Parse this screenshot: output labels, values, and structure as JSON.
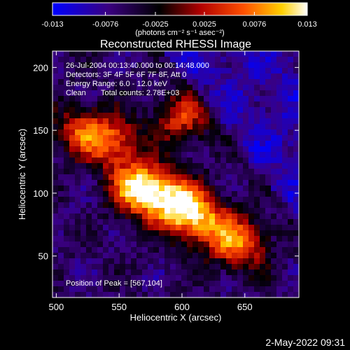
{
  "chart_data": {
    "type": "heatmap",
    "title": "Reconstructed RHESSI Image",
    "xlabel": "Heliocentric X (arcsec)",
    "ylabel": "Heliocentric Y (arcsec)",
    "xlim": [
      497,
      693
    ],
    "ylim": [
      17,
      213
    ],
    "x_ticks": [
      500,
      550,
      600,
      650
    ],
    "y_ticks": [
      50,
      100,
      150,
      200
    ],
    "colorbar": {
      "range": [
        -0.013,
        0.013
      ],
      "tick_values": [
        -0.013,
        -0.0076,
        -0.0025,
        0.0025,
        0.0076,
        0.013
      ],
      "tick_labels": [
        "-0.013",
        "-0.0076",
        "-0.0025",
        "0.0025",
        "0.0076",
        "0.013"
      ],
      "unit_label": "(photons cm⁻² s⁻¹ asec⁻²)"
    },
    "annotations": {
      "time_range": "26-Jul-2004 00:13:40.000 to 00:14:48.000",
      "detectors": "Detectors: 3F 4F 5F 6F 7F 8F, Att 0",
      "energy": "Energy Range: 6.0 - 12.0 keV",
      "algorithm": "Clean",
      "total_counts": "Total counts: 2.78E+03",
      "peak": "Position of Peak = [567,104]"
    },
    "peak_position": [
      567,
      104
    ],
    "source_ridge": [
      {
        "x": 520,
        "y": 150,
        "intensity": 0.0035
      },
      {
        "x": 545,
        "y": 140,
        "intensity": 0.0055
      },
      {
        "x": 567,
        "y": 104,
        "intensity": 0.013
      },
      {
        "x": 595,
        "y": 92,
        "intensity": 0.0095
      },
      {
        "x": 615,
        "y": 78,
        "intensity": 0.0065
      },
      {
        "x": 645,
        "y": 60,
        "intensity": 0.0075
      },
      {
        "x": 600,
        "y": 160,
        "intensity": 0.004
      }
    ],
    "grid": false,
    "colormap": "IDL color table 5 (blue-black-red-yellow-white)"
  },
  "footer": {
    "timestamp": "2-May-2022 09:31"
  },
  "colors": {
    "background": "#000000",
    "foreground": "#ffffff"
  }
}
